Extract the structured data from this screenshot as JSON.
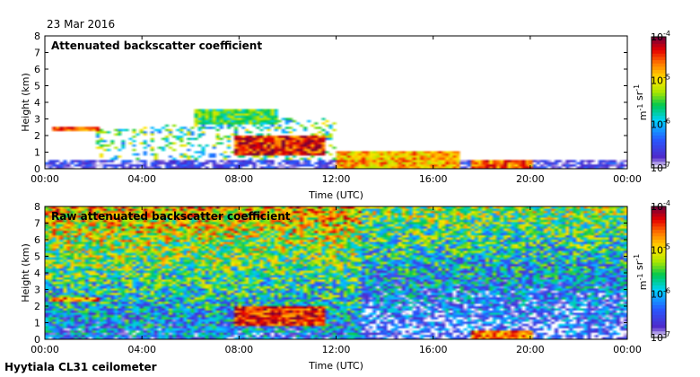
{
  "date": "23 Mar 2016",
  "site": "Hyytiala CL31 ceilometer",
  "chart_data": [
    {
      "type": "heatmap",
      "title": "Attenuated backscatter coefficient",
      "xlabel": "Time (UTC)",
      "ylabel": "Height (km)",
      "x_ticks": [
        "00:00",
        "04:00",
        "08:00",
        "12:00",
        "16:00",
        "20:00",
        "00:00"
      ],
      "xlim_hours": [
        0,
        24
      ],
      "y_ticks": [
        0,
        1,
        2,
        3,
        4,
        5,
        6,
        7,
        8
      ],
      "ylim_km": [
        0,
        8
      ],
      "colorbar": {
        "label": "m-1 sr-1",
        "scale": "log",
        "range": [
          1e-07,
          0.0001
        ],
        "ticks": [
          "10-7",
          "10-6",
          "10-5",
          "10-4"
        ]
      },
      "features": [
        {
          "name": "surface layer",
          "t": [
            0,
            24
          ],
          "z_km": [
            0,
            0.6
          ],
          "log10": -6.7
        },
        {
          "name": "cloud",
          "t": [
            0.3,
            2.2
          ],
          "z_km": [
            2.3,
            2.6
          ],
          "log10": -4.6
        },
        {
          "name": "cloud",
          "t": [
            6.1,
            9.5
          ],
          "z_km": [
            2.7,
            3.6
          ],
          "log10": -5.5
        },
        {
          "name": "cloud",
          "t": [
            7.8,
            11.5
          ],
          "z_km": [
            0.9,
            2.0
          ],
          "log10": -4.4
        },
        {
          "name": "cloud",
          "t": [
            12,
            17
          ],
          "z_km": [
            0.1,
            1.1
          ],
          "log10": -4.8
        },
        {
          "name": "cloud",
          "t": [
            17.5,
            20
          ],
          "z_km": [
            0.1,
            0.6
          ],
          "log10": -4.6
        }
      ]
    },
    {
      "type": "heatmap",
      "title": "Raw attenuated backscatter coefficient",
      "xlabel": "Time (UTC)",
      "ylabel": "Height (km)",
      "x_ticks": [
        "00:00",
        "04:00",
        "08:00",
        "12:00",
        "16:00",
        "20:00",
        "00:00"
      ],
      "xlim_hours": [
        0,
        24
      ],
      "y_ticks": [
        0,
        1,
        2,
        3,
        4,
        5,
        6,
        7,
        8
      ],
      "ylim_km": [
        0,
        8
      ],
      "colorbar": {
        "label": "m-1 sr-1",
        "scale": "log",
        "range": [
          1e-07,
          0.0001
        ],
        "ticks": [
          "10-7",
          "10-6",
          "10-5",
          "10-4"
        ]
      },
      "features": [
        {
          "name": "noise increasing with height",
          "t": [
            0,
            24
          ],
          "z_km": [
            0,
            8
          ],
          "log10": -5.0
        },
        {
          "name": "cloud",
          "t": [
            0.3,
            2.2
          ],
          "z_km": [
            2.3,
            2.6
          ],
          "log10": -4.6
        },
        {
          "name": "cloud",
          "t": [
            7.8,
            11.5
          ],
          "z_km": [
            0.9,
            2.0
          ],
          "log10": -4.4
        },
        {
          "name": "cloud",
          "t": [
            17.5,
            20
          ],
          "z_km": [
            0.1,
            0.6
          ],
          "log10": -4.6
        }
      ]
    }
  ]
}
